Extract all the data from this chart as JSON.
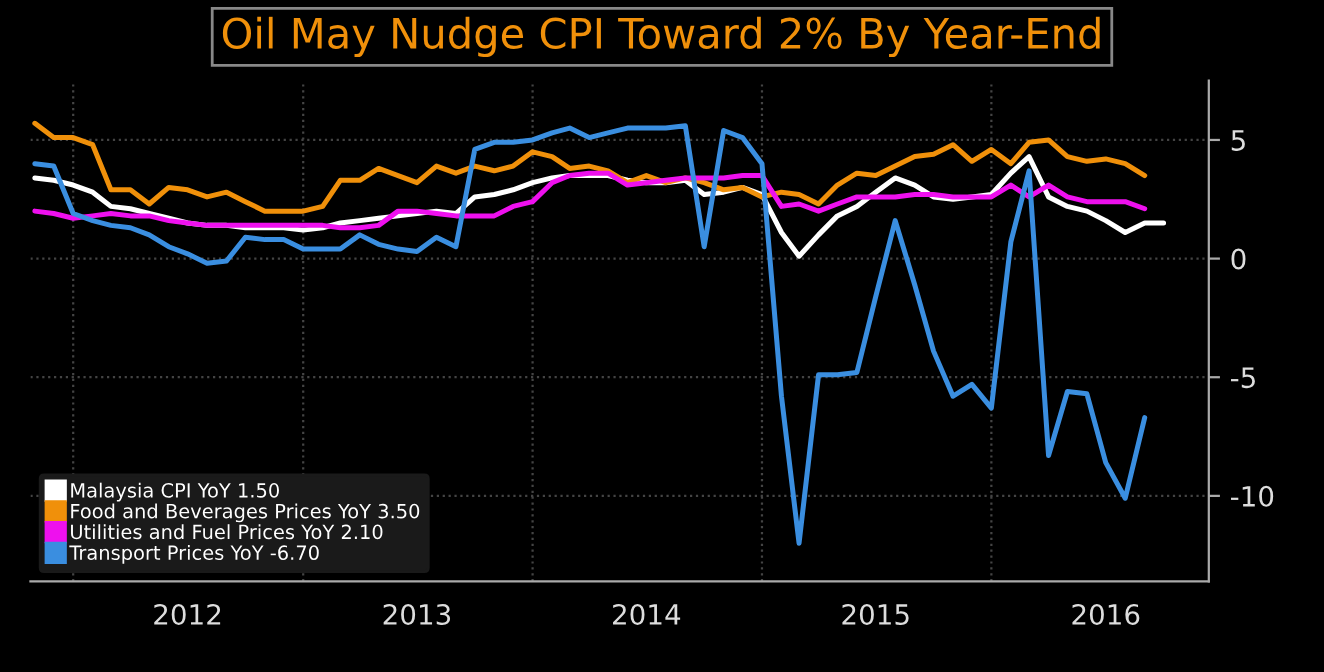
{
  "chart_data": {
    "type": "line",
    "title": "Oil May Nudge CPI Toward 2% By Year-End",
    "x": [
      "2011-11",
      "2011-12",
      "2012-01",
      "2012-02",
      "2012-03",
      "2012-04",
      "2012-05",
      "2012-06",
      "2012-07",
      "2012-08",
      "2012-09",
      "2012-10",
      "2012-11",
      "2012-12",
      "2013-01",
      "2013-02",
      "2013-03",
      "2013-04",
      "2013-05",
      "2013-06",
      "2013-07",
      "2013-08",
      "2013-09",
      "2013-10",
      "2013-11",
      "2013-12",
      "2014-01",
      "2014-02",
      "2014-03",
      "2014-04",
      "2014-05",
      "2014-06",
      "2014-07",
      "2014-08",
      "2014-09",
      "2014-10",
      "2014-11",
      "2014-12",
      "2015-01",
      "2015-02",
      "2015-03",
      "2015-04",
      "2015-05",
      "2015-06",
      "2015-07",
      "2015-08",
      "2015-09",
      "2015-10",
      "2015-11",
      "2015-12",
      "2016-01",
      "2016-02",
      "2016-03",
      "2016-04",
      "2016-05",
      "2016-06",
      "2016-07",
      "2016-08",
      "2016-09",
      "2016-10"
    ],
    "series": [
      {
        "name": "Malaysia CPI YoY 1.50",
        "color": "#ffffff",
        "values": [
          3.4,
          3.3,
          3.1,
          2.8,
          2.2,
          2.1,
          1.9,
          1.7,
          1.5,
          1.4,
          1.4,
          1.3,
          1.3,
          1.3,
          1.2,
          1.3,
          1.5,
          1.6,
          1.7,
          1.8,
          1.9,
          2.0,
          1.9,
          2.6,
          2.7,
          2.9,
          3.2,
          3.4,
          3.5,
          3.5,
          3.5,
          3.3,
          3.2,
          3.2,
          3.3,
          2.7,
          2.8,
          3.0,
          2.7,
          1.1,
          0.1,
          1.0,
          1.8,
          2.2,
          2.8,
          3.4,
          3.1,
          2.6,
          2.5,
          2.6,
          2.7,
          3.6,
          4.3,
          2.6,
          2.2,
          2.0,
          1.6,
          1.1,
          1.5,
          1.5
        ]
      },
      {
        "name": "Food and Beverages Prices YoY 3.50",
        "color": "#f0900a",
        "values": [
          5.7,
          5.1,
          5.1,
          4.8,
          2.9,
          2.9,
          2.3,
          3.0,
          2.9,
          2.6,
          2.8,
          2.4,
          2.0,
          2.0,
          2.0,
          2.2,
          3.3,
          3.3,
          3.8,
          3.5,
          3.2,
          3.9,
          3.6,
          3.9,
          3.7,
          3.9,
          4.5,
          4.3,
          3.8,
          3.9,
          3.7,
          3.2,
          3.5,
          3.2,
          3.4,
          3.2,
          2.9,
          3.0,
          2.6,
          2.8,
          2.7,
          2.3,
          3.1,
          3.6,
          3.5,
          3.9,
          4.3,
          4.4,
          4.8,
          4.1,
          4.6,
          4.0,
          4.9,
          5.0,
          4.3,
          4.1,
          4.2,
          4.0,
          3.5,
          null
        ]
      },
      {
        "name": "Utilities and Fuel Prices YoY 2.10",
        "color": "#ee10ee",
        "values": [
          2.0,
          1.9,
          1.7,
          1.8,
          1.9,
          1.8,
          1.8,
          1.6,
          1.5,
          1.4,
          1.4,
          1.4,
          1.4,
          1.4,
          1.4,
          1.4,
          1.3,
          1.3,
          1.4,
          2.0,
          2.0,
          1.9,
          1.8,
          1.8,
          1.8,
          2.2,
          2.4,
          3.2,
          3.5,
          3.6,
          3.6,
          3.1,
          3.2,
          3.3,
          3.4,
          3.4,
          3.4,
          3.5,
          3.5,
          2.2,
          2.3,
          2.0,
          2.3,
          2.6,
          2.6,
          2.6,
          2.7,
          2.7,
          2.6,
          2.6,
          2.6,
          3.1,
          2.6,
          3.1,
          2.6,
          2.4,
          2.4,
          2.4,
          2.1,
          null
        ]
      },
      {
        "name": "Transport Prices YoY -6.70",
        "color": "#3a8ee0",
        "values": [
          4.0,
          3.9,
          1.9,
          1.6,
          1.4,
          1.3,
          1.0,
          0.5,
          0.2,
          -0.2,
          -0.1,
          0.9,
          0.8,
          0.8,
          0.4,
          0.4,
          0.4,
          1.0,
          0.6,
          0.4,
          0.3,
          0.9,
          0.5,
          4.6,
          4.9,
          4.9,
          5.0,
          5.3,
          5.5,
          5.1,
          5.3,
          5.5,
          5.5,
          5.5,
          5.6,
          0.5,
          5.4,
          5.1,
          4.0,
          -5.8,
          -12.0,
          -4.9,
          -4.9,
          -4.8,
          -1.6,
          1.6,
          -1.1,
          -3.9,
          -5.8,
          -5.3,
          -6.3,
          0.7,
          3.7,
          -8.3,
          -5.6,
          -5.7,
          -8.6,
          -10.1,
          -6.7,
          null
        ]
      }
    ],
    "xlim": [
      "2011-10-25",
      "2016-12-12"
    ],
    "xticks": [
      {
        "value": "2012-01",
        "label": null
      },
      {
        "value": "2012-07",
        "label": "2012"
      },
      {
        "value": "2013-01",
        "label": null
      },
      {
        "value": "2013-07",
        "label": "2013"
      },
      {
        "value": "2014-01",
        "label": null
      },
      {
        "value": "2014-07",
        "label": "2014"
      },
      {
        "value": "2015-01",
        "label": null
      },
      {
        "value": "2015-07",
        "label": "2015"
      },
      {
        "value": "2016-01",
        "label": null
      },
      {
        "value": "2016-07",
        "label": "2016"
      }
    ],
    "ylim": [
      -13.6,
      7.5
    ],
    "yticks": [
      -10,
      -5,
      0,
      5
    ],
    "grid": true,
    "legend": "bottom left",
    "line_style": "solid",
    "marker": "none"
  }
}
